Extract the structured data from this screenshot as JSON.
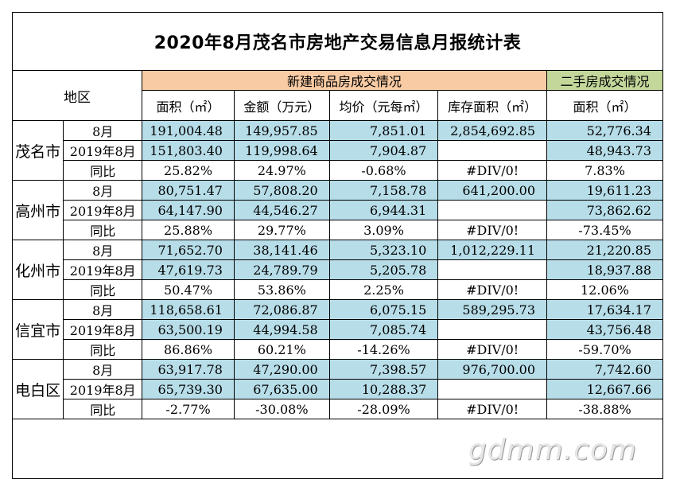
{
  "title": "2020年8月茂名市房地产交易信息月报统计表",
  "header": {
    "region_label": "地区",
    "new_group": "新建商品房成交情况",
    "second_group": "二手房成交情况",
    "cols": [
      "面积（㎡）",
      "金额（万元）",
      "均价（元每㎡）",
      "库存面积（㎡）",
      "面积（㎡）"
    ]
  },
  "row_labels": [
    "8月",
    "2019年8月",
    "同比"
  ],
  "regions": [
    {
      "name": "茂名市",
      "rows": [
        [
          "191,004.48",
          "149,957.85",
          "7,851.01",
          "2,854,692.85",
          "52,776.34"
        ],
        [
          "151,803.40",
          "119,998.64",
          "7,904.87",
          "",
          "48,943.73"
        ],
        [
          "25.82%",
          "24.97%",
          "-0.68%",
          "#DIV/0!",
          "7.83%"
        ]
      ]
    },
    {
      "name": "高州市",
      "rows": [
        [
          "80,751.47",
          "57,808.20",
          "7,158.78",
          "641,200.00",
          "19,611.23"
        ],
        [
          "64,147.90",
          "44,546.27",
          "6,944.31",
          "",
          "73,862.62"
        ],
        [
          "25.88%",
          "29.77%",
          "3.09%",
          "#DIV/0!",
          "-73.45%"
        ]
      ]
    },
    {
      "name": "化州市",
      "rows": [
        [
          "71,652.70",
          "38,141.46",
          "5,323.10",
          "1,012,229.11",
          "21,220.85"
        ],
        [
          "47,619.73",
          "24,789.79",
          "5,205.78",
          "",
          "18,937.88"
        ],
        [
          "50.47%",
          "53.86%",
          "2.25%",
          "#DIV/0!",
          "12.06%"
        ]
      ]
    },
    {
      "name": "信宜市",
      "rows": [
        [
          "118,658.61",
          "72,086.87",
          "6,075.15",
          "589,295.73",
          "17,634.17"
        ],
        [
          "63,500.19",
          "44,994.58",
          "7,085.74",
          "",
          "43,756.48"
        ],
        [
          "86.86%",
          "60.21%",
          "-14.26%",
          "#DIV/0!",
          "-59.70%"
        ]
      ]
    },
    {
      "name": "电白区",
      "rows": [
        [
          "63,917.78",
          "47,290.00",
          "7,398.57",
          "976,700.00",
          "7,742.60"
        ],
        [
          "65,739.30",
          "67,635.00",
          "10,288.37",
          "",
          "12,667.66"
        ],
        [
          "-2.77%",
          "-30.08%",
          "-28.09%",
          "#DIV/0!",
          "-38.88%"
        ]
      ]
    }
  ],
  "watermark": "gdmm.com",
  "colors": {
    "header_orange": "#f8cba4",
    "header_green": "#c4d79b",
    "data_blue": "#b7dde8"
  }
}
